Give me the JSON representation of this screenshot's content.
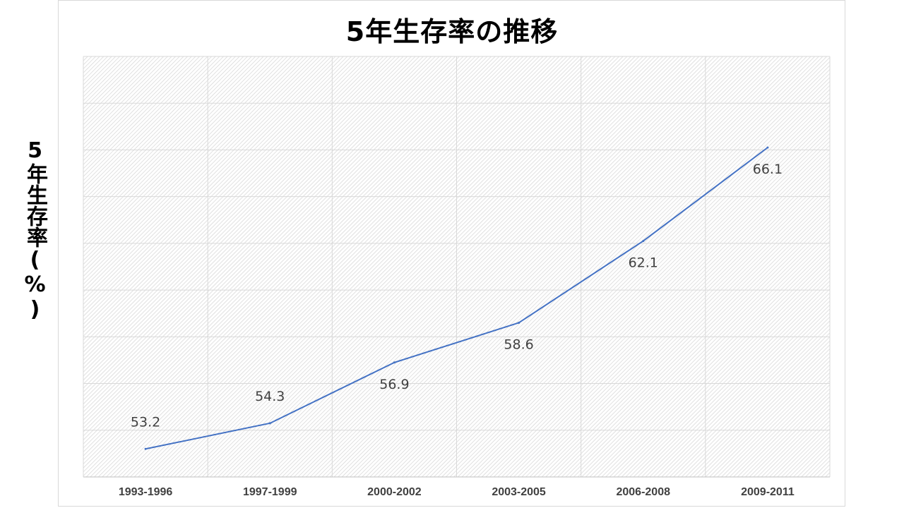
{
  "chart_data": {
    "type": "line",
    "title": "5年生存率の推移",
    "ylabel": "5年生存率(%)",
    "xlabel": "",
    "categories": [
      "1993-1996",
      "1997-1999",
      "2000-2002",
      "2003-2005",
      "2006-2008",
      "2009-2011"
    ],
    "series": [
      {
        "values": [
          53.2,
          54.3,
          56.9,
          58.6,
          62.1,
          66.1
        ],
        "color": "#4472c4"
      }
    ],
    "ylim": [
      52,
      70
    ],
    "y_tick_labels_shown": false,
    "grid": true,
    "plot_background": "diagonal hatch",
    "data_labels": true
  }
}
